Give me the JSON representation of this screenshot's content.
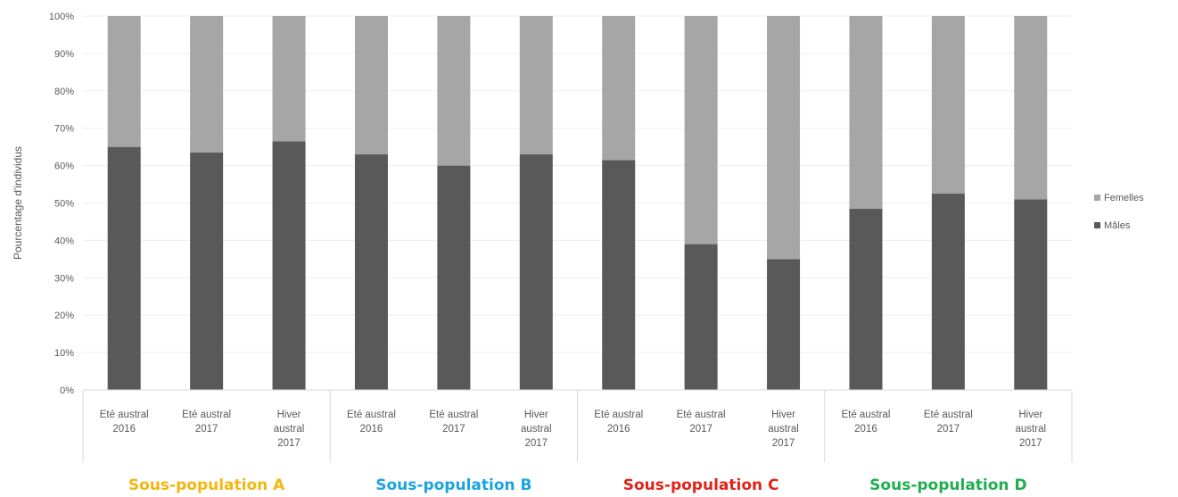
{
  "chart_data": {
    "type": "bar",
    "stacked": true,
    "ylabel": "Pourcentage d'individus",
    "ylim": [
      0,
      100
    ],
    "y_ticks": [
      "0%",
      "10%",
      "20%",
      "30%",
      "40%",
      "50%",
      "60%",
      "70%",
      "80%",
      "90%",
      "100%"
    ],
    "grid": true,
    "legend_position": "right",
    "categories": [
      [
        "Eté austral",
        "2016"
      ],
      [
        "Eté austral",
        "2017"
      ],
      [
        "Hiver",
        "austral",
        "2017"
      ],
      [
        "Eté austral",
        "2016"
      ],
      [
        "Eté austral",
        "2017"
      ],
      [
        "Hiver",
        "austral",
        "2017"
      ],
      [
        "Eté austral",
        "2016"
      ],
      [
        "Eté austral",
        "2017"
      ],
      [
        "Hiver",
        "austral",
        "2017"
      ],
      [
        "Eté austral",
        "2016"
      ],
      [
        "Eté austral",
        "2017"
      ],
      [
        "Hiver",
        "austral",
        "2017"
      ]
    ],
    "groups": [
      {
        "label": "Sous-population A",
        "color": "#F2B70F"
      },
      {
        "label": "Sous-population B",
        "color": "#1BA3E0"
      },
      {
        "label": "Sous-population C",
        "color": "#E0231B"
      },
      {
        "label": "Sous-population D",
        "color": "#1FAE50"
      }
    ],
    "series": [
      {
        "name": "Mâles",
        "color": "#595959",
        "values": [
          65,
          63.5,
          66.5,
          63,
          60,
          63,
          61.5,
          39,
          35,
          48.5,
          52.5,
          51
        ]
      },
      {
        "name": "Femelles",
        "color": "#A6A6A6",
        "values": [
          35,
          36.5,
          33.5,
          37,
          40,
          37,
          38.5,
          61,
          65,
          51.5,
          47.5,
          49
        ]
      }
    ]
  }
}
